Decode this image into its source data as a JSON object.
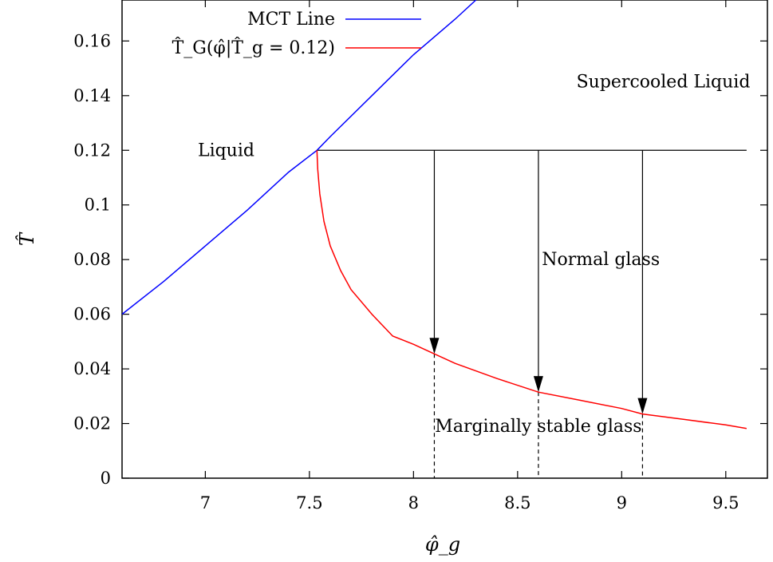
{
  "chart_data": {
    "type": "line",
    "xlabel": "φ̂_g",
    "ylabel": "T̂",
    "xlim": [
      6.6,
      9.7
    ],
    "ylim": [
      0,
      0.175
    ],
    "x_ticks": [
      7,
      7.5,
      8,
      8.5,
      9,
      9.5
    ],
    "x_tick_labels": [
      "7",
      "7.5",
      "8",
      "8.5",
      "9",
      "9.5"
    ],
    "y_ticks": [
      0,
      0.02,
      0.04,
      0.06,
      0.08,
      0.1,
      0.12,
      0.14,
      0.16
    ],
    "y_tick_labels": [
      "0",
      "0.02",
      "0.04",
      "0.06",
      "0.08",
      "0.1",
      "0.12",
      "0.14",
      "0.16"
    ],
    "grid": false,
    "legend_position": "top-left",
    "series": [
      {
        "name": "MCT Line",
        "color": "#0000ff",
        "x": [
          6.6,
          6.8,
          7.0,
          7.2,
          7.4,
          7.536,
          7.6,
          7.8,
          8.0,
          8.2,
          8.3
        ],
        "y": [
          0.06,
          0.072,
          0.085,
          0.098,
          0.112,
          0.12,
          0.125,
          0.14,
          0.155,
          0.168,
          0.175
        ]
      },
      {
        "name": "T̂_G(φ̂|T̂_g = 0.12)",
        "color": "#ff0000",
        "x": [
          7.536,
          7.54,
          7.55,
          7.57,
          7.6,
          7.65,
          7.7,
          7.8,
          7.9,
          8.0,
          8.1,
          8.2,
          8.4,
          8.6,
          8.8,
          9.0,
          9.1,
          9.3,
          9.5,
          9.6
        ],
        "y": [
          0.12,
          0.113,
          0.104,
          0.094,
          0.085,
          0.076,
          0.069,
          0.06,
          0.052,
          0.049,
          0.0455,
          0.042,
          0.0365,
          0.0315,
          0.0285,
          0.0255,
          0.0235,
          0.0215,
          0.0195,
          0.0182
        ]
      }
    ],
    "reference_line": {
      "x": [
        7.536,
        9.6
      ],
      "y": 0.12,
      "color": "#000000"
    },
    "arrows": [
      {
        "x": 8.1,
        "y_from": 0.12,
        "y_to": 0.0455
      },
      {
        "x": 8.6,
        "y_from": 0.12,
        "y_to": 0.0315
      },
      {
        "x": 9.1,
        "y_from": 0.12,
        "y_to": 0.0235
      }
    ],
    "annotations": [
      {
        "text": "Liquid",
        "x": 7.1,
        "y": 0.12
      },
      {
        "text": "Supercooled Liquid",
        "x": 9.2,
        "y": 0.145
      },
      {
        "text": "Normal glass",
        "x": 8.9,
        "y": 0.08
      },
      {
        "text": "Marginally stable glass",
        "x": 8.6,
        "y": 0.019
      }
    ]
  }
}
